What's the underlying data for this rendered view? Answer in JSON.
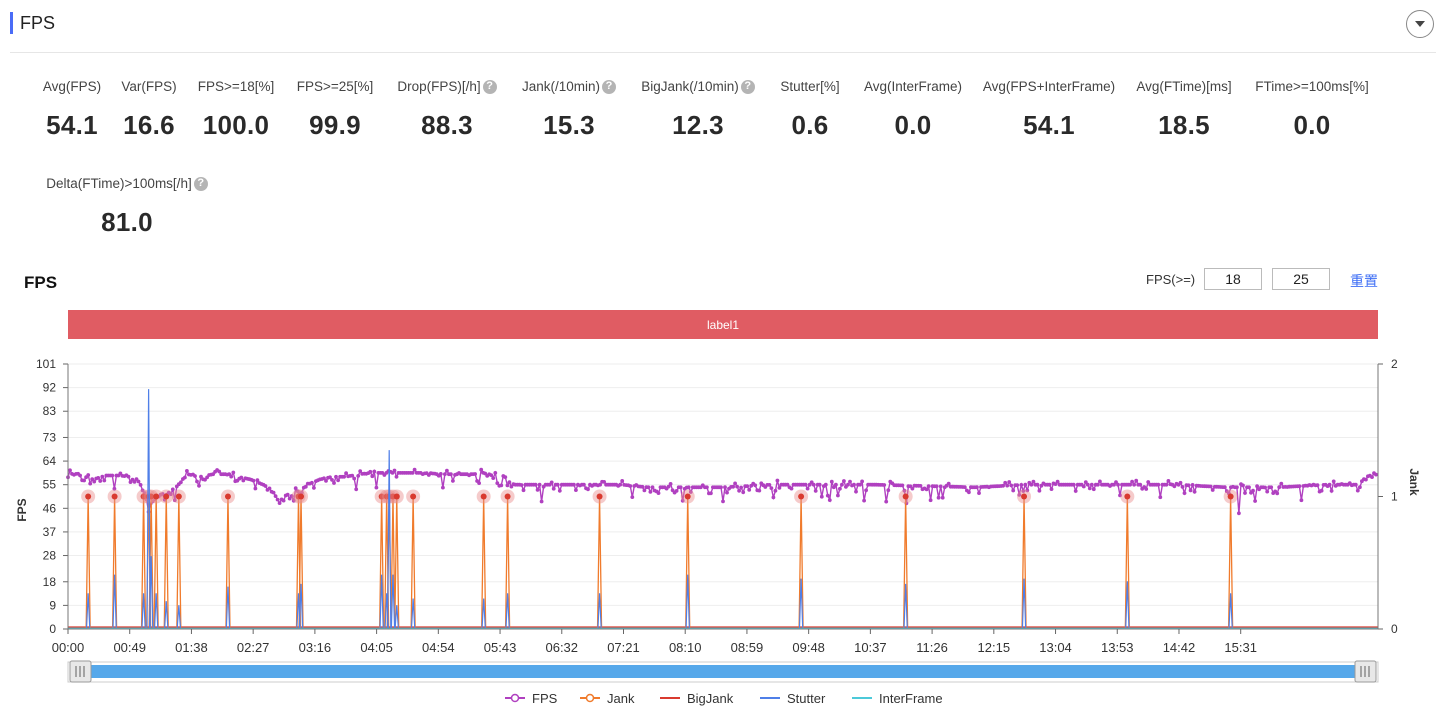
{
  "header": {
    "title": "FPS"
  },
  "metrics": [
    {
      "label": "Avg(FPS)",
      "value": "54.1",
      "help": false
    },
    {
      "label": "Var(FPS)",
      "value": "16.6",
      "help": false
    },
    {
      "label": "FPS>=18[%]",
      "value": "100.0",
      "help": false
    },
    {
      "label": "FPS>=25[%]",
      "value": "99.9",
      "help": false
    },
    {
      "label": "Drop(FPS)[/h]",
      "value": "88.3",
      "help": true
    },
    {
      "label": "Jank(/10min)",
      "value": "15.3",
      "help": true
    },
    {
      "label": "BigJank(/10min)",
      "value": "12.3",
      "help": true
    },
    {
      "label": "Stutter[%]",
      "value": "0.6",
      "help": false
    },
    {
      "label": "Avg(InterFrame)",
      "value": "0.0",
      "help": false
    },
    {
      "label": "Avg(FPS+InterFrame)",
      "value": "54.1",
      "help": false
    },
    {
      "label": "Avg(FTime)[ms]",
      "value": "18.5",
      "help": false
    },
    {
      "label": "FTime>=100ms[%]",
      "value": "0.0",
      "help": false
    },
    {
      "label": "Delta(FTime)>100ms[/h]",
      "value": "81.0",
      "help": true
    }
  ],
  "chart_section": {
    "title": "FPS",
    "threshold_label": "FPS(>=)",
    "threshold_low": "18",
    "threshold_high": "25",
    "reset_label": "重置",
    "label_band": "label1",
    "help_glyph": "?"
  },
  "chart_data": {
    "type": "line",
    "y_left": {
      "label": "FPS",
      "ticks": [
        0,
        9,
        18,
        28,
        37,
        46,
        55,
        64,
        73,
        83,
        92,
        101
      ],
      "range": [
        0,
        101
      ]
    },
    "y_right": {
      "label": "Jank",
      "ticks": [
        0,
        1,
        2
      ],
      "range": [
        0,
        2
      ]
    },
    "x_range_seconds": [
      0,
      1040
    ],
    "x_tick_labels": [
      "00:00",
      "00:49",
      "01:38",
      "02:27",
      "03:16",
      "04:05",
      "04:54",
      "05:43",
      "06:32",
      "07:21",
      "08:10",
      "08:59",
      "09:48",
      "10:37",
      "11:26",
      "12:15",
      "13:04",
      "13:53",
      "14:42",
      "15:31"
    ],
    "legend": [
      "FPS",
      "Jank",
      "BigJank",
      "Stutter",
      "InterFrame"
    ],
    "colors": {
      "FPS": "#b040c0",
      "Jank": "#f07b2c",
      "BigJank": "#d93a2f",
      "Stutter": "#4f7fe8",
      "InterFrame": "#4cc9d9"
    },
    "fps_profile": [
      [
        0,
        59
      ],
      [
        10,
        58.5
      ],
      [
        20,
        57
      ],
      [
        30,
        58.5
      ],
      [
        40,
        58.5
      ],
      [
        50,
        58
      ],
      [
        55,
        57
      ],
      [
        60,
        53
      ],
      [
        64,
        47
      ],
      [
        68,
        49
      ],
      [
        72,
        51
      ],
      [
        80,
        52
      ],
      [
        88,
        55
      ],
      [
        95,
        59
      ],
      [
        105,
        58
      ],
      [
        115,
        59
      ],
      [
        125,
        59
      ],
      [
        135,
        58
      ],
      [
        145,
        57
      ],
      [
        155,
        55
      ],
      [
        162,
        53
      ],
      [
        168,
        48
      ],
      [
        173,
        51
      ],
      [
        180,
        52
      ],
      [
        185,
        53
      ],
      [
        190,
        55
      ],
      [
        200,
        57
      ],
      [
        210,
        58
      ],
      [
        220,
        58
      ],
      [
        232,
        59
      ],
      [
        240,
        59.5
      ],
      [
        260,
        59.5
      ],
      [
        280,
        59.5
      ],
      [
        300,
        59
      ],
      [
        320,
        59
      ],
      [
        340,
        59.5
      ],
      [
        347,
        58
      ],
      [
        352,
        55
      ],
      [
        370,
        55
      ],
      [
        400,
        55
      ],
      [
        420,
        55
      ],
      [
        440,
        55
      ],
      [
        460,
        54
      ],
      [
        480,
        54
      ],
      [
        500,
        54
      ],
      [
        520,
        54
      ],
      [
        540,
        54.5
      ],
      [
        560,
        55
      ],
      [
        600,
        55
      ],
      [
        640,
        55
      ],
      [
        680,
        54.5
      ],
      [
        720,
        54
      ],
      [
        760,
        55
      ],
      [
        800,
        55
      ],
      [
        840,
        55
      ],
      [
        880,
        55
      ],
      [
        920,
        54
      ],
      [
        960,
        54
      ],
      [
        1000,
        55
      ],
      [
        1025,
        55
      ],
      [
        1030,
        58
      ],
      [
        1040,
        59
      ]
    ],
    "jank_times": [
      16,
      37,
      60,
      64,
      66,
      70,
      78,
      88,
      127,
      183,
      185,
      249,
      253,
      255,
      258,
      261,
      274,
      330,
      349,
      422,
      492,
      582,
      665,
      759,
      841,
      923
    ],
    "stutter_spikes": [
      [
        16,
        0.27
      ],
      [
        37,
        0.41
      ],
      [
        60,
        0.27
      ],
      [
        64,
        1.81
      ],
      [
        66,
        0.55
      ],
      [
        70,
        0.27
      ],
      [
        78,
        0.21
      ],
      [
        88,
        0.18
      ],
      [
        127,
        0.32
      ],
      [
        183,
        0.27
      ],
      [
        185,
        0.34
      ],
      [
        249,
        0.41
      ],
      [
        253,
        0.27
      ],
      [
        255,
        1.35
      ],
      [
        258,
        0.41
      ],
      [
        261,
        0.18
      ],
      [
        274,
        0.23
      ],
      [
        330,
        0.23
      ],
      [
        349,
        0.27
      ],
      [
        422,
        0.27
      ],
      [
        492,
        0.41
      ],
      [
        582,
        0.38
      ],
      [
        665,
        0.34
      ],
      [
        759,
        0.38
      ],
      [
        841,
        0.36
      ],
      [
        923,
        0.27
      ]
    ]
  }
}
